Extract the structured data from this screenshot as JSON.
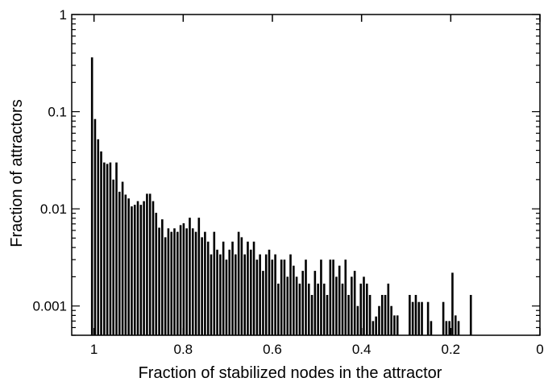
{
  "chart_data": {
    "type": "bar",
    "title": "",
    "xlabel": "Fraction of stabilized nodes in the attractor",
    "ylabel": "Fraction of attractors",
    "x_axis": {
      "range": [
        1.05,
        0
      ],
      "reversed": true,
      "ticks": [
        1,
        0.8,
        0.6,
        0.4,
        0.2,
        0
      ],
      "tick_labels": [
        "1",
        "0.8",
        "0.6",
        "0.4",
        "0.2",
        "0"
      ]
    },
    "y_axis": {
      "scale": "log",
      "range": [
        0.0005,
        1
      ],
      "ticks": [
        1,
        0.1,
        0.01,
        0.001
      ],
      "tick_labels": [
        "1",
        "0.1",
        "0.01",
        "0.001"
      ]
    },
    "grid": false,
    "legend": "none",
    "bar_color": "#000000",
    "bin_width": 0.00685,
    "series": [
      {
        "x": [
          1.0034,
          0.9966,
          0.9897,
          0.9829,
          0.976,
          0.9692,
          0.9623,
          0.9555,
          0.9486,
          0.9418,
          0.9349,
          0.9281,
          0.9212,
          0.9144,
          0.9075,
          0.9007,
          0.8938,
          0.887,
          0.8801,
          0.8733,
          0.8664,
          0.8596,
          0.8527,
          0.8459,
          0.839,
          0.8322,
          0.8253,
          0.8185,
          0.8116,
          0.8048,
          0.7979,
          0.7911,
          0.7842,
          0.7774,
          0.7705,
          0.7637,
          0.7568,
          0.75,
          0.7431,
          0.7363,
          0.7294,
          0.7226,
          0.7157,
          0.7089,
          0.702,
          0.6952,
          0.6883,
          0.6815,
          0.6746,
          0.6678,
          0.6609,
          0.6541,
          0.6472,
          0.6404,
          0.6335,
          0.6267,
          0.6198,
          0.613,
          0.6061,
          0.5993,
          0.5924,
          0.5856,
          0.5787,
          0.5719,
          0.565,
          0.5582,
          0.5513,
          0.5445,
          0.5376,
          0.5308,
          0.5239,
          0.5171,
          0.5102,
          0.5034,
          0.4965,
          0.4897,
          0.4828,
          0.476,
          0.4691,
          0.4623,
          0.4554,
          0.4486,
          0.4417,
          0.4349,
          0.428,
          0.4212,
          0.4143,
          0.4075,
          0.4006,
          0.3938,
          0.3869,
          0.3801,
          0.3732,
          0.3664,
          0.3595,
          0.3527,
          0.3458,
          0.339,
          0.3321,
          0.3253,
          0.3184,
          0.291,
          0.2842,
          0.2773,
          0.2704,
          0.2636,
          0.2499,
          0.243,
          0.2156,
          0.2088,
          0.2019,
          0.1951,
          0.1882,
          0.1814,
          0.1539
        ],
        "values": [
          0.362,
          0.084,
          0.052,
          0.039,
          0.03,
          0.029,
          0.03,
          0.02,
          0.03,
          0.015,
          0.019,
          0.014,
          0.0128,
          0.0106,
          0.011,
          0.012,
          0.011,
          0.012,
          0.0143,
          0.0143,
          0.012,
          0.0091,
          0.0064,
          0.0078,
          0.0051,
          0.0063,
          0.0058,
          0.0063,
          0.0058,
          0.0068,
          0.0071,
          0.0063,
          0.0081,
          0.0063,
          0.0058,
          0.0081,
          0.0051,
          0.0058,
          0.0046,
          0.0034,
          0.0058,
          0.0038,
          0.0034,
          0.0046,
          0.003,
          0.0038,
          0.0046,
          0.0034,
          0.0058,
          0.0051,
          0.0034,
          0.0046,
          0.0038,
          0.0046,
          0.003,
          0.0034,
          0.0023,
          0.0034,
          0.0038,
          0.003,
          0.0034,
          0.0017,
          0.003,
          0.003,
          0.002,
          0.0034,
          0.0026,
          0.002,
          0.0017,
          0.0023,
          0.003,
          0.0017,
          0.0013,
          0.0023,
          0.0017,
          0.003,
          0.0017,
          0.0013,
          0.003,
          0.003,
          0.002,
          0.0026,
          0.0017,
          0.003,
          0.0013,
          0.002,
          0.0023,
          0.001,
          0.0017,
          0.002,
          0.0017,
          0.0013,
          0.0007,
          0.00078,
          0.001,
          0.0013,
          0.0013,
          0.0017,
          0.001,
          0.0008,
          0.0008,
          0.0013,
          0.0011,
          0.0013,
          0.0011,
          0.0011,
          0.0011,
          0.0007,
          0.0011,
          0.0007,
          0.0007,
          0.0022,
          0.0008,
          0.0007,
          0.0013
        ]
      }
    ]
  }
}
